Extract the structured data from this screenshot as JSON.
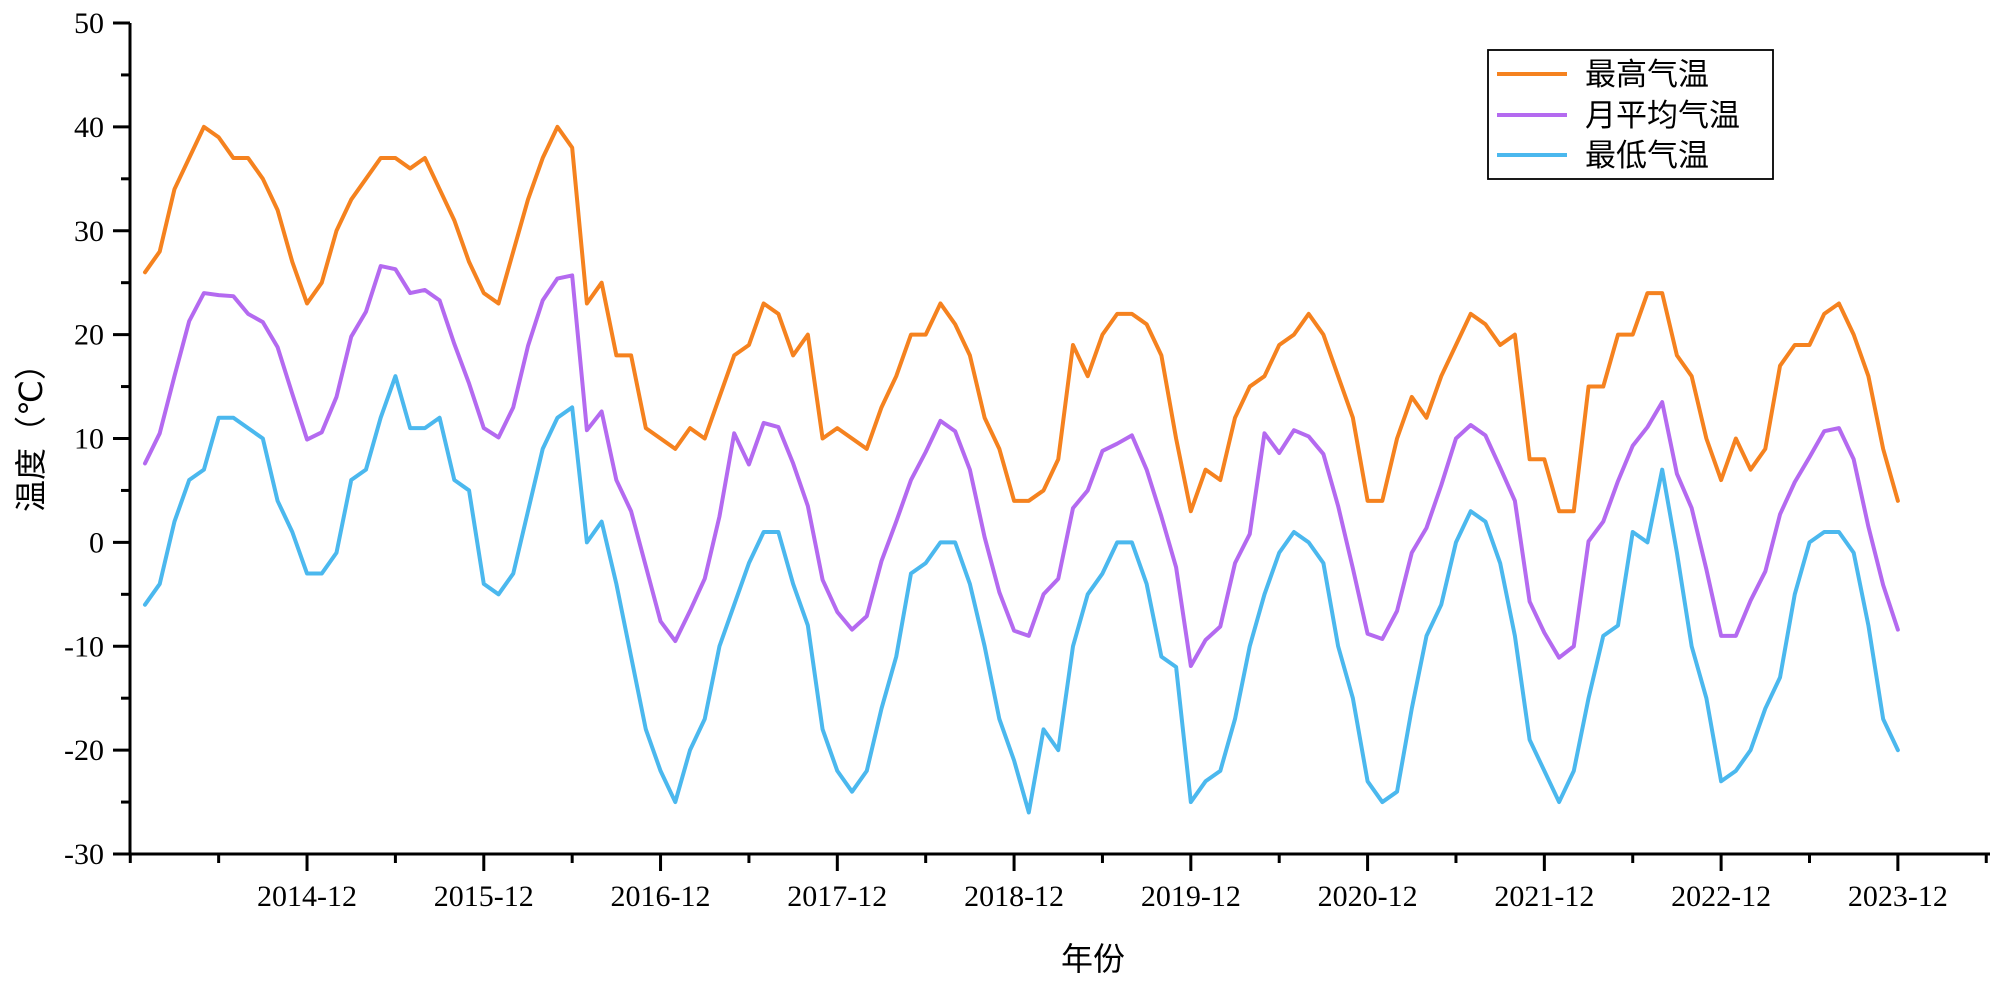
{
  "chart_data": {
    "type": "line",
    "title": "",
    "xlabel": "年份",
    "ylabel": "温度（℃）",
    "ylim": [
      -30,
      50
    ],
    "yticks": [
      -30,
      -20,
      -10,
      0,
      10,
      20,
      30,
      40,
      50
    ],
    "start_month": "2014-01",
    "xtick_labels": [
      "2014-12",
      "2015-12",
      "2016-12",
      "2017-12",
      "2018-12",
      "2019-12",
      "2020-12",
      "2021-12",
      "2022-12",
      "2023-12"
    ],
    "xtick_indices": [
      11,
      23,
      35,
      47,
      59,
      71,
      83,
      95,
      107,
      119
    ],
    "legend_position": "top-right",
    "series": [
      {
        "name": "最高气温",
        "color": "#F5821F",
        "values": [
          26,
          28,
          34,
          37,
          40,
          39,
          37,
          37,
          35,
          32,
          27,
          23,
          25,
          30,
          33,
          35,
          37,
          37,
          36,
          37,
          34,
          31,
          27,
          24,
          23,
          28,
          33,
          37,
          40,
          38,
          23,
          25,
          18,
          18,
          11,
          10,
          9,
          11,
          10,
          14,
          18,
          19,
          23,
          22,
          18,
          20,
          10,
          11,
          10,
          9,
          13,
          16,
          20,
          20,
          23,
          21,
          18,
          12,
          9,
          4,
          4,
          5,
          8,
          19,
          16,
          20,
          22,
          22,
          21,
          18,
          10,
          3,
          7,
          6,
          12,
          15,
          16,
          19,
          20,
          22,
          20,
          16,
          12,
          4,
          4,
          10,
          14,
          12,
          16,
          19,
          22,
          21,
          19,
          20,
          8,
          8,
          3,
          3,
          15,
          15,
          20,
          20,
          24,
          24,
          18,
          16,
          10,
          6,
          10,
          7,
          9,
          17,
          19,
          19,
          22,
          23,
          20,
          16,
          9,
          4
        ]
      },
      {
        "name": "月平均气温",
        "color": "#B46AF0",
        "values": [
          7.6,
          10.5,
          16,
          21.3,
          24,
          23.8,
          23.7,
          22,
          21.2,
          18.8,
          14.3,
          9.9,
          10.6,
          14,
          19.8,
          22.2,
          26.6,
          26.3,
          24,
          24.3,
          23.3,
          19.1,
          15.3,
          11,
          10.1,
          13,
          18.9,
          23.3,
          25.4,
          25.7,
          10.8,
          12.6,
          6,
          3,
          -2.3,
          -7.6,
          -9.5,
          -6.6,
          -3.5,
          2.5,
          10.5,
          7.5,
          11.5,
          11.1,
          7.6,
          3.5,
          -3.6,
          -6.7,
          -8.4,
          -7.1,
          -1.8,
          2,
          6,
          8.7,
          11.7,
          10.7,
          7,
          0.5,
          -4.8,
          -8.5,
          -9,
          -5,
          -3.5,
          3.3,
          5,
          8.8,
          9.5,
          10.3,
          7,
          2.5,
          -2.4,
          -11.9,
          -9.4,
          -8.1,
          -2,
          0.8,
          10.5,
          8.6,
          10.8,
          10.2,
          8.5,
          3.5,
          -2.5,
          -8.8,
          -9.3,
          -6.6,
          -1,
          1.4,
          5.5,
          10,
          11.3,
          10.3,
          7.2,
          4,
          -5.7,
          -8.7,
          -11.1,
          -10,
          0.1,
          2,
          5.9,
          9.3,
          11.1,
          13.5,
          6.6,
          3.3,
          -2.6,
          -9,
          -9,
          -5.6,
          -2.8,
          2.7,
          5.8,
          8.2,
          10.7,
          11,
          8,
          1.5,
          -4.1,
          -8.4
        ]
      },
      {
        "name": "最低气温",
        "color": "#4BB8EE",
        "values": [
          -6,
          -4,
          2,
          6,
          7,
          12,
          12,
          11,
          10,
          4,
          1,
          -3,
          -3,
          -1,
          6,
          7,
          12,
          16,
          11,
          11,
          12,
          6,
          5,
          -4,
          -5,
          -3,
          3,
          9,
          12,
          13,
          0,
          2,
          -4,
          -11,
          -18,
          -22,
          -25,
          -20,
          -17,
          -10,
          -6,
          -2,
          1,
          1,
          -4,
          -8,
          -18,
          -22,
          -24,
          -22,
          -16,
          -11,
          -3,
          -2,
          0,
          0,
          -4,
          -10,
          -17,
          -21,
          -26,
          -18,
          -20,
          -10,
          -5,
          -3,
          0,
          0,
          -4,
          -11,
          -12,
          -25,
          -23,
          -22,
          -17,
          -10,
          -5,
          -1,
          1,
          0,
          -2,
          -10,
          -15,
          -23,
          -25,
          -24,
          -16,
          -9,
          -6,
          0,
          3,
          2,
          -2,
          -9,
          -19,
          -22,
          -25,
          -22,
          -15,
          -9,
          -8,
          1,
          0,
          7,
          -1,
          -10,
          -15,
          -23,
          -22,
          -20,
          -16,
          -13,
          -5,
          0,
          1,
          1,
          -1,
          -8,
          -17,
          -20
        ]
      }
    ]
  }
}
